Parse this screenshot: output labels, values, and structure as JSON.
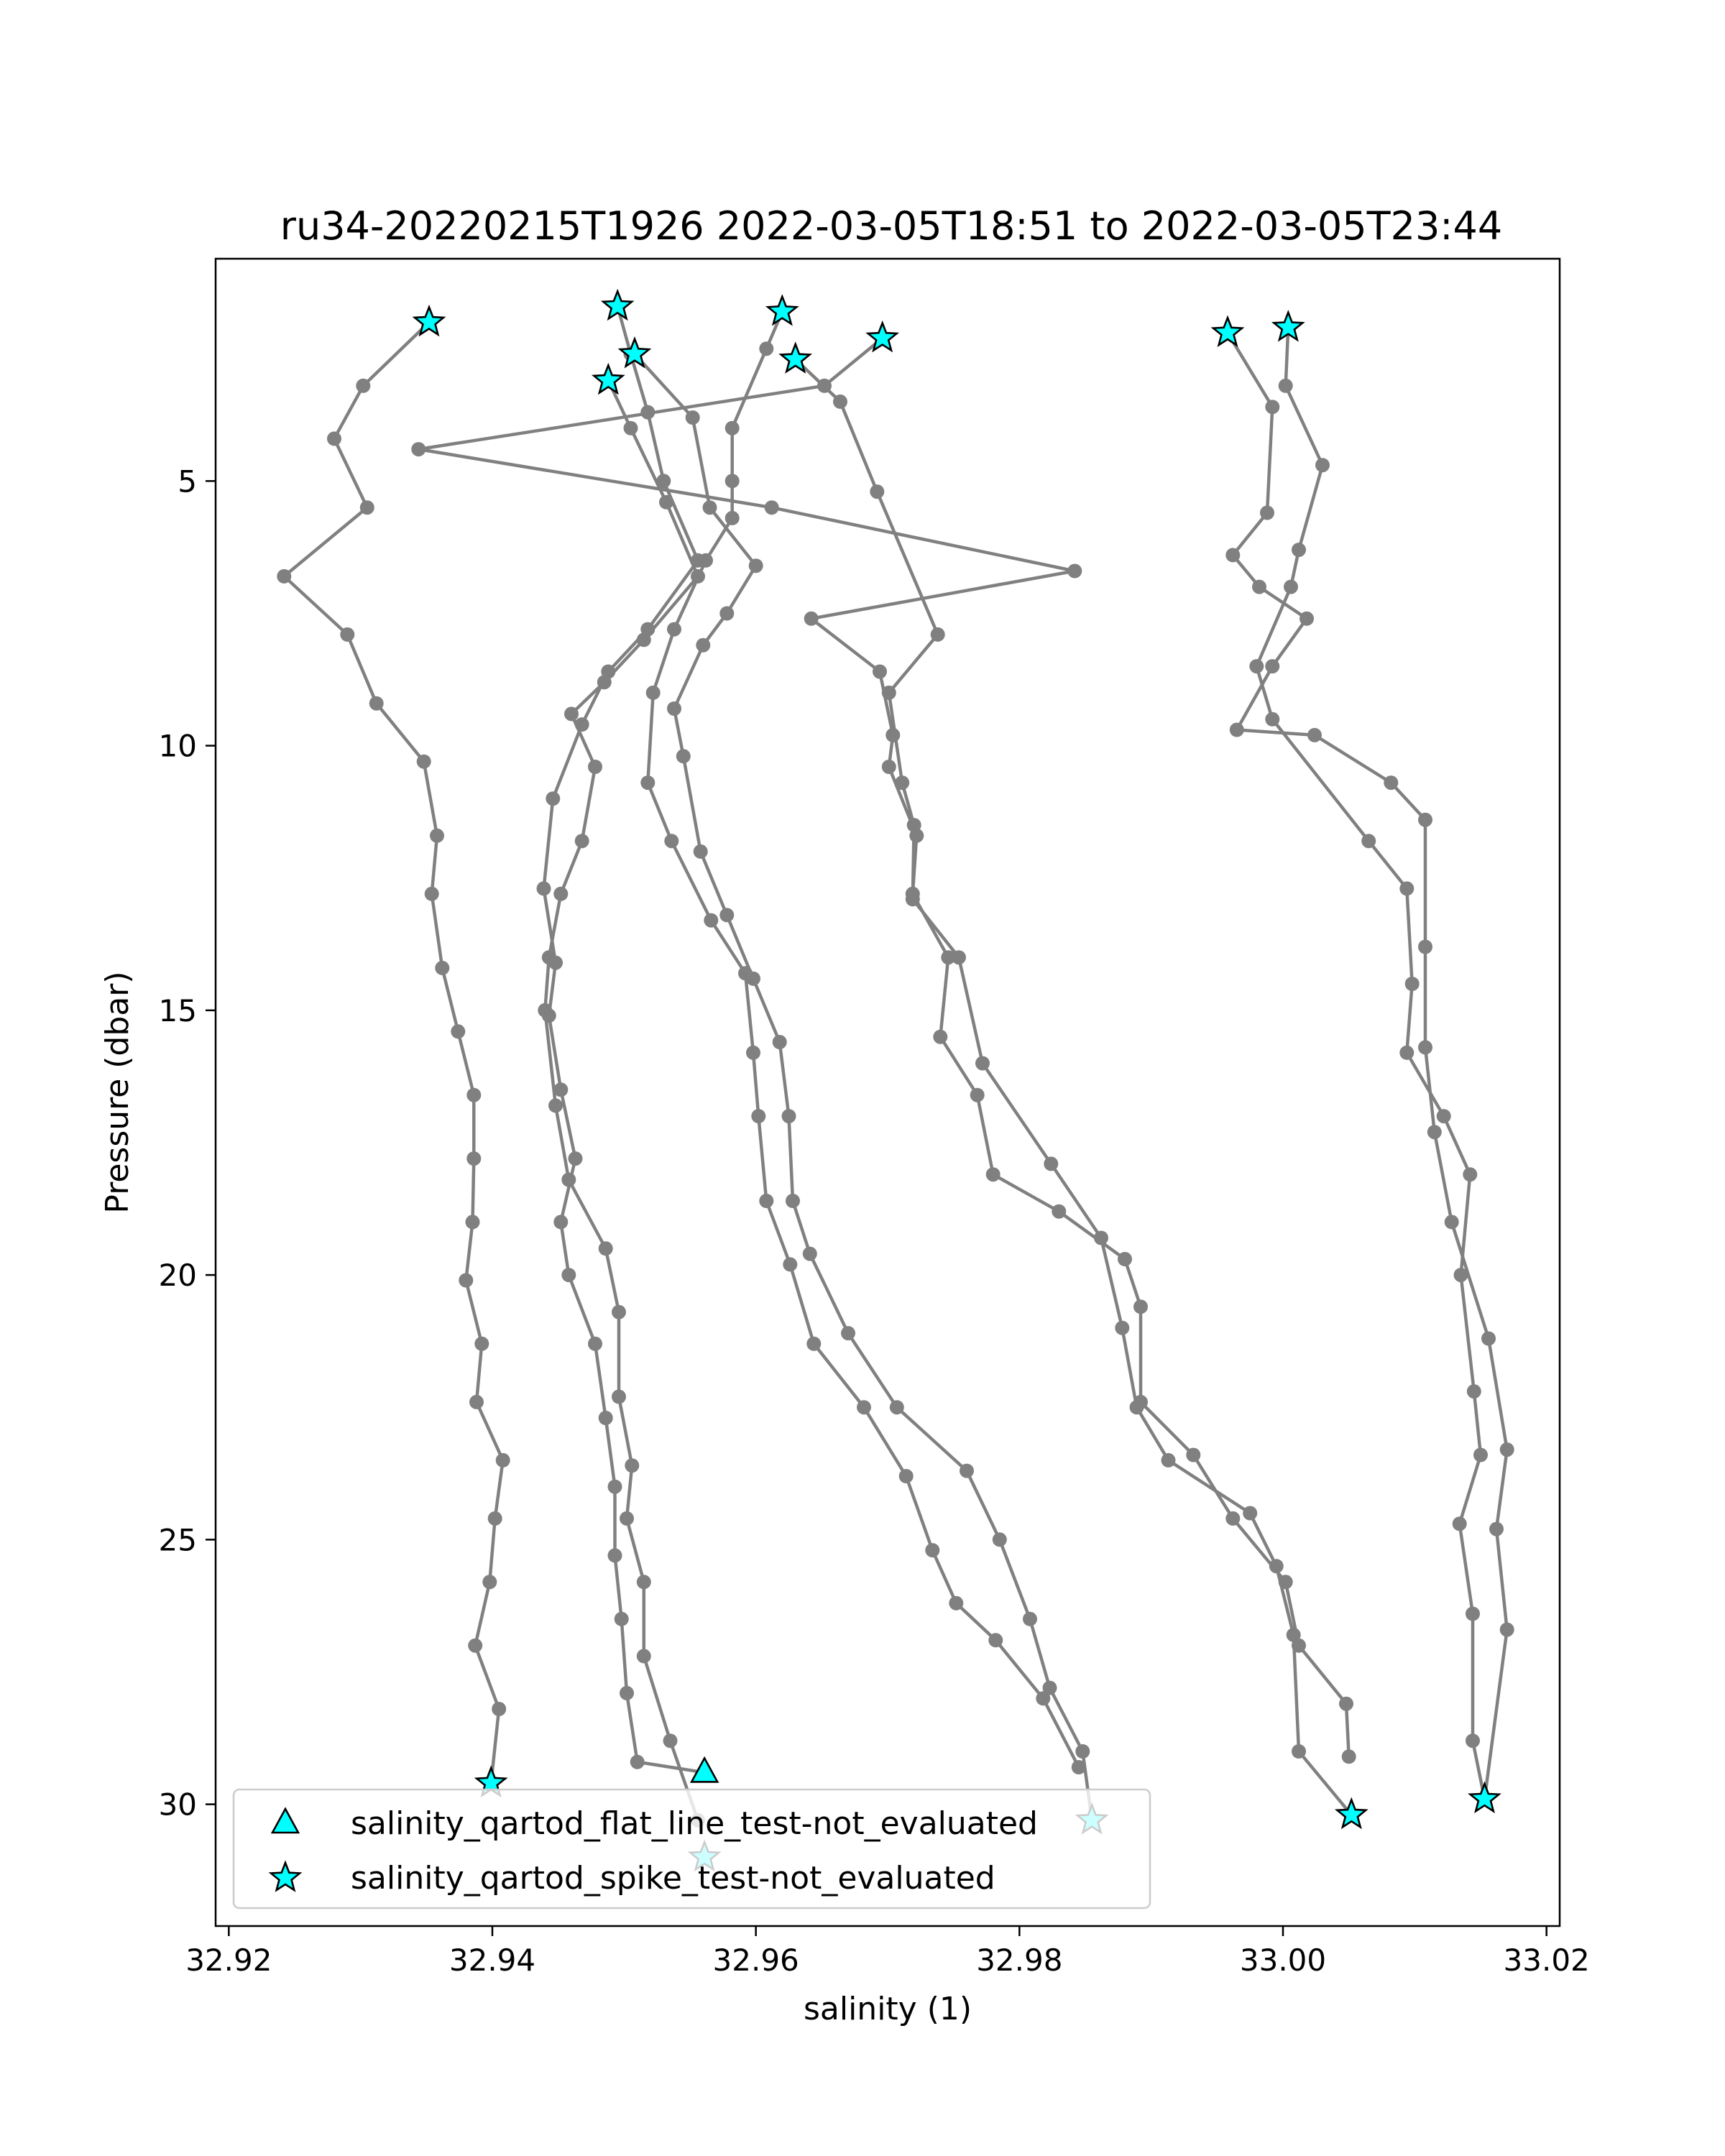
{
  "chart_data": {
    "type": "line",
    "title": "ru34-20220215T1926 2022-03-05T18:51 to 2022-03-05T23:44",
    "xlabel": "salinity (1)",
    "ylabel": "Pressure (dbar)",
    "xlim": [
      32.919,
      33.021
    ],
    "ylim": [
      32.3,
      0.8
    ],
    "y_inverted": true,
    "grid": false,
    "legend_position": "lower-left",
    "x_ticks": [
      "32.92",
      "32.94",
      "32.96",
      "32.98",
      "33.00",
      "33.02"
    ],
    "x_tick_values": [
      32.92,
      32.94,
      32.96,
      32.98,
      33.0,
      33.02
    ],
    "y_ticks": [
      "5",
      "10",
      "15",
      "20",
      "25",
      "30"
    ],
    "y_tick_values": [
      5,
      10,
      15,
      20,
      25,
      30
    ],
    "line_color": "#808080",
    "marker_color": "#00ffff",
    "profiles": [
      {
        "points": [
          [
            32.9352,
            2.0
          ],
          [
            32.9302,
            3.2
          ],
          [
            32.928,
            4.2
          ],
          [
            32.9305,
            5.5
          ],
          [
            32.9242,
            6.8
          ],
          [
            32.929,
            7.9
          ],
          [
            32.9312,
            9.2
          ],
          [
            32.9348,
            10.3
          ],
          [
            32.9358,
            11.7
          ],
          [
            32.9354,
            12.8
          ],
          [
            32.9362,
            14.2
          ],
          [
            32.9374,
            15.4
          ],
          [
            32.9386,
            16.6
          ],
          [
            32.9386,
            17.8
          ],
          [
            32.9385,
            19.0
          ],
          [
            32.938,
            20.1
          ],
          [
            32.9392,
            21.3
          ],
          [
            32.9388,
            22.4
          ],
          [
            32.9408,
            23.5
          ],
          [
            32.9402,
            24.6
          ],
          [
            32.9398,
            25.8
          ],
          [
            32.9387,
            27.0
          ],
          [
            32.9405,
            28.2
          ],
          [
            32.9399,
            29.6
          ]
        ]
      },
      {
        "points": [
          [
            32.9495,
            1.7
          ],
          [
            32.9505,
            2.6
          ],
          [
            32.9518,
            3.7
          ],
          [
            32.953,
            5.0
          ],
          [
            32.9556,
            6.5
          ],
          [
            32.9518,
            7.8
          ],
          [
            32.9488,
            8.6
          ],
          [
            32.9468,
            9.6
          ],
          [
            32.9446,
            11.0
          ],
          [
            32.9439,
            12.7
          ],
          [
            32.9448,
            14.1
          ],
          [
            32.9443,
            15.1
          ],
          [
            32.9452,
            16.5
          ],
          [
            32.9463,
            17.8
          ],
          [
            32.9452,
            19.0
          ],
          [
            32.9458,
            20.0
          ],
          [
            32.9478,
            21.3
          ],
          [
            32.9486,
            22.7
          ],
          [
            32.9493,
            24.0
          ],
          [
            32.9493,
            25.3
          ],
          [
            32.9498,
            26.5
          ],
          [
            32.9502,
            27.9
          ],
          [
            32.951,
            29.2
          ],
          [
            32.9561,
            29.4
          ]
        ]
      },
      {
        "points": [
          [
            32.9488,
            3.1
          ],
          [
            32.9505,
            4.0
          ],
          [
            32.9532,
            5.4
          ],
          [
            32.9556,
            6.8
          ],
          [
            32.9515,
            8.0
          ],
          [
            32.9485,
            8.8
          ],
          [
            32.946,
            9.4
          ],
          [
            32.9478,
            10.4
          ],
          [
            32.9468,
            11.8
          ],
          [
            32.9452,
            12.8
          ],
          [
            32.9443,
            14.0
          ],
          [
            32.944,
            15.0
          ],
          [
            32.9448,
            16.8
          ],
          [
            32.9458,
            18.2
          ],
          [
            32.9486,
            19.5
          ],
          [
            32.9496,
            20.7
          ],
          [
            32.9496,
            22.3
          ],
          [
            32.9506,
            23.6
          ],
          [
            32.9502,
            24.6
          ],
          [
            32.9515,
            25.8
          ],
          [
            32.9515,
            27.2
          ],
          [
            32.9535,
            28.8
          ],
          [
            32.9556,
            30.3
          ]
        ]
      },
      {
        "points": [
          [
            32.9508,
            2.6
          ],
          [
            32.9552,
            3.8
          ],
          [
            32.9565,
            5.5
          ],
          [
            32.96,
            6.6
          ],
          [
            32.9578,
            7.5
          ],
          [
            32.956,
            8.1
          ],
          [
            32.9538,
            9.3
          ],
          [
            32.9545,
            10.2
          ],
          [
            32.9558,
            12.0
          ],
          [
            32.9578,
            13.2
          ],
          [
            32.9598,
            14.4
          ],
          [
            32.9618,
            15.6
          ],
          [
            32.9625,
            17.0
          ],
          [
            32.9628,
            18.6
          ],
          [
            32.9641,
            19.6
          ],
          [
            32.967,
            21.1
          ],
          [
            32.9707,
            22.5
          ],
          [
            32.976,
            23.7
          ],
          [
            32.9785,
            25.0
          ],
          [
            32.9808,
            26.5
          ],
          [
            32.9823,
            27.8
          ],
          [
            32.9848,
            29.0
          ],
          [
            32.9855,
            30.3
          ]
        ]
      },
      {
        "points": [
          [
            32.962,
            1.8
          ],
          [
            32.9608,
            2.5
          ],
          [
            32.9582,
            4.0
          ],
          [
            32.9582,
            5.0
          ],
          [
            32.9582,
            5.7
          ],
          [
            32.9562,
            6.5
          ],
          [
            32.9538,
            7.8
          ],
          [
            32.9522,
            9.0
          ],
          [
            32.9518,
            10.7
          ],
          [
            32.9536,
            11.8
          ],
          [
            32.9566,
            13.3
          ],
          [
            32.9592,
            14.3
          ],
          [
            32.9598,
            15.8
          ],
          [
            32.9602,
            17.0
          ],
          [
            32.9608,
            18.6
          ],
          [
            32.9626,
            19.8
          ],
          [
            32.9644,
            21.3
          ],
          [
            32.9682,
            22.5
          ],
          [
            32.9714,
            23.8
          ],
          [
            32.9734,
            25.2
          ],
          [
            32.9752,
            26.2
          ],
          [
            32.9782,
            26.9
          ],
          [
            32.9818,
            28.0
          ],
          [
            32.9845,
            29.3
          ]
        ]
      },
      {
        "points": [
          [
            32.963,
            2.7
          ],
          [
            32.9664,
            3.5
          ],
          [
            32.9692,
            5.2
          ],
          [
            32.9738,
            7.9
          ],
          [
            32.9701,
            9.0
          ],
          [
            32.9711,
            10.7
          ],
          [
            32.972,
            11.5
          ],
          [
            32.9719,
            12.9
          ],
          [
            32.9754,
            14.0
          ],
          [
            32.9772,
            16.0
          ],
          [
            32.9824,
            17.9
          ],
          [
            32.9862,
            19.3
          ],
          [
            32.9878,
            21.0
          ],
          [
            32.9889,
            22.5
          ],
          [
            32.9913,
            23.5
          ],
          [
            32.9975,
            24.5
          ],
          [
            32.9995,
            25.5
          ],
          [
            33.0008,
            26.8
          ],
          [
            33.0012,
            29.0
          ],
          [
            33.0052,
            30.2
          ]
        ]
      },
      {
        "points": [
          [
            32.9696,
            2.3
          ],
          [
            32.9652,
            3.2
          ],
          [
            32.9344,
            4.4
          ],
          [
            32.9612,
            5.5
          ],
          [
            32.9842,
            6.7
          ],
          [
            32.9642,
            7.6
          ],
          [
            32.9694,
            8.6
          ],
          [
            32.9704,
            9.8
          ],
          [
            32.9701,
            10.4
          ],
          [
            32.9722,
            11.7
          ],
          [
            32.9719,
            12.8
          ],
          [
            32.9746,
            14.0
          ],
          [
            32.974,
            15.5
          ],
          [
            32.9768,
            16.6
          ],
          [
            32.978,
            18.1
          ],
          [
            32.983,
            18.8
          ],
          [
            32.988,
            19.7
          ],
          [
            32.9892,
            20.6
          ],
          [
            32.9892,
            22.4
          ],
          [
            32.9932,
            23.4
          ],
          [
            32.9962,
            24.6
          ],
          [
            33.0002,
            25.8
          ],
          [
            33.0012,
            27.0
          ],
          [
            33.0048,
            28.1
          ],
          [
            33.005,
            29.1
          ]
        ]
      },
      {
        "points": [
          [
            32.9958,
            2.2
          ],
          [
            32.9992,
            3.6
          ],
          [
            32.9988,
            5.6
          ],
          [
            32.9962,
            6.4
          ],
          [
            32.9982,
            7.0
          ],
          [
            33.0018,
            7.6
          ],
          [
            32.9992,
            8.5
          ],
          [
            32.9965,
            9.7
          ],
          [
            33.0024,
            9.8
          ],
          [
            33.0082,
            10.7
          ],
          [
            33.0108,
            11.4
          ],
          [
            33.0108,
            13.8
          ],
          [
            33.0108,
            15.7
          ],
          [
            33.0115,
            17.3
          ],
          [
            33.0128,
            19.0
          ],
          [
            33.0156,
            21.2
          ],
          [
            33.017,
            23.3
          ],
          [
            33.0162,
            24.8
          ],
          [
            33.017,
            26.7
          ],
          [
            33.0153,
            29.9
          ]
        ]
      },
      {
        "points": [
          [
            33.0004,
            2.1
          ],
          [
            33.0002,
            3.2
          ],
          [
            33.003,
            4.7
          ],
          [
            33.0012,
            6.3
          ],
          [
            33.0006,
            7.0
          ],
          [
            32.998,
            8.5
          ],
          [
            32.9992,
            9.5
          ],
          [
            33.0065,
            11.8
          ],
          [
            33.0094,
            12.7
          ],
          [
            33.0098,
            14.5
          ],
          [
            33.0094,
            15.8
          ],
          [
            33.0122,
            17.0
          ],
          [
            33.0142,
            18.1
          ],
          [
            33.0135,
            20.0
          ],
          [
            33.0145,
            22.2
          ],
          [
            33.015,
            23.4
          ],
          [
            33.0134,
            24.7
          ],
          [
            33.0144,
            26.4
          ],
          [
            33.0144,
            28.8
          ],
          [
            33.0153,
            29.9
          ]
        ]
      }
    ],
    "markers": [
      {
        "series": "salinity_qartod_spike_test-not_evaluated",
        "shape": "star",
        "x": 32.9352,
        "y": 2.0
      },
      {
        "series": "salinity_qartod_spike_test-not_evaluated",
        "shape": "star",
        "x": 32.9495,
        "y": 1.7
      },
      {
        "series": "salinity_qartod_spike_test-not_evaluated",
        "shape": "star",
        "x": 32.9508,
        "y": 2.6
      },
      {
        "series": "salinity_qartod_spike_test-not_evaluated",
        "shape": "star",
        "x": 32.9488,
        "y": 3.1
      },
      {
        "series": "salinity_qartod_spike_test-not_evaluated",
        "shape": "star",
        "x": 32.962,
        "y": 1.8
      },
      {
        "series": "salinity_qartod_spike_test-not_evaluated",
        "shape": "star",
        "x": 32.963,
        "y": 2.7
      },
      {
        "series": "salinity_qartod_spike_test-not_evaluated",
        "shape": "star",
        "x": 32.9696,
        "y": 2.3
      },
      {
        "series": "salinity_qartod_spike_test-not_evaluated",
        "shape": "star",
        "x": 32.9958,
        "y": 2.2
      },
      {
        "series": "salinity_qartod_spike_test-not_evaluated",
        "shape": "star",
        "x": 33.0004,
        "y": 2.1
      },
      {
        "series": "salinity_qartod_spike_test-not_evaluated",
        "shape": "star",
        "x": 32.9399,
        "y": 29.6
      },
      {
        "series": "salinity_qartod_flat_line_test-not_evaluated",
        "shape": "triangle",
        "x": 32.9561,
        "y": 29.4
      },
      {
        "series": "salinity_qartod_spike_test-not_evaluated",
        "shape": "star",
        "x": 32.9561,
        "y": 31.0
      },
      {
        "series": "salinity_qartod_spike_test-not_evaluated",
        "shape": "star",
        "x": 32.9855,
        "y": 30.3
      },
      {
        "series": "salinity_qartod_spike_test-not_evaluated",
        "shape": "star",
        "x": 33.0052,
        "y": 30.2
      },
      {
        "series": "salinity_qartod_spike_test-not_evaluated",
        "shape": "star",
        "x": 33.0153,
        "y": 29.9
      }
    ],
    "legend": [
      {
        "label": "salinity_qartod_flat_line_test-not_evaluated",
        "shape": "triangle"
      },
      {
        "label": "salinity_qartod_spike_test-not_evaluated",
        "shape": "star"
      }
    ]
  }
}
